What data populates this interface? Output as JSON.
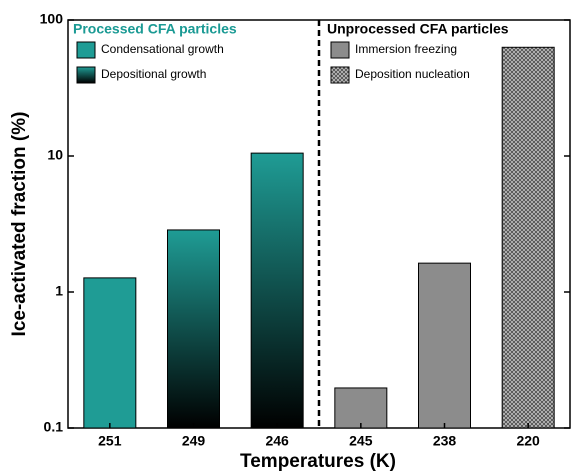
{
  "chart_data": {
    "type": "bar",
    "y_label": "Ice-activated fraction (%)",
    "x_label": "Temperatures (K)",
    "categories": [
      "251",
      "249",
      "246",
      "245",
      "238",
      "220"
    ],
    "groups": [
      {
        "label": "Processed CFA particles",
        "color": "#1a9a94"
      },
      {
        "label": "Unprocessed CFA particles",
        "color": "#000000"
      }
    ],
    "series": [
      {
        "name": "Condensational growth",
        "color": "#1f9c95",
        "fill": "solid",
        "values": [
          1.27,
          null,
          null,
          null,
          null,
          null
        ]
      },
      {
        "name": "Depositional growth",
        "color": "#1f9c95",
        "fill": "gradient",
        "values": [
          null,
          2.86,
          10.5,
          null,
          null,
          null
        ]
      },
      {
        "name": "Immersion freezing",
        "color": "#8c8c8c",
        "fill": "solid",
        "values": [
          null,
          null,
          null,
          0.197,
          1.63,
          null
        ]
      },
      {
        "name": "Deposition nucleation",
        "color": "#5a5a5a",
        "fill": "crosshatch",
        "values": [
          null,
          null,
          null,
          null,
          null,
          63
        ]
      }
    ],
    "ylim": [
      0.1,
      100
    ],
    "yticks": [
      0.1,
      1,
      10,
      100
    ],
    "log_y": true
  }
}
